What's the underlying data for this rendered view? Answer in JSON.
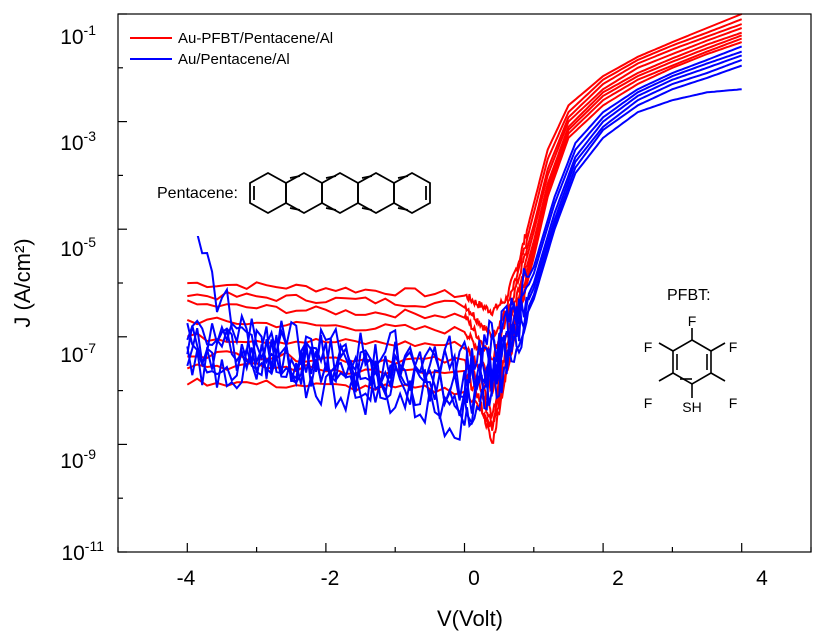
{
  "chart_data": {
    "type": "line",
    "xlabel": "V(Volt)",
    "ylabel": "J (A/cm²)",
    "xlim": [
      -5,
      5
    ],
    "ylim": [
      1e-11,
      0.1
    ],
    "yscale": "log",
    "x_ticks": [
      -4,
      -2,
      0,
      2,
      4
    ],
    "x_tick_labels": [
      "-4",
      "-2",
      "0",
      "2",
      "4"
    ],
    "y_ticks": [
      {
        "base": "10",
        "exp": "-1",
        "value": 0.1
      },
      {
        "base": "10",
        "exp": "-3",
        "value": 0.001
      },
      {
        "base": "10",
        "exp": "-5",
        "value": 1e-05
      },
      {
        "base": "10",
        "exp": "-7",
        "value": 1e-07
      },
      {
        "base": "10",
        "exp": "-9",
        "value": 1e-09
      },
      {
        "base": "10",
        "exp": "-11",
        "value": 1e-11
      }
    ],
    "legend_position": "top-left",
    "series": [
      {
        "name": "Au-PFBT/Pentacene/Al",
        "color": "#ff0000",
        "curves": [
          {
            "x": [
              -4,
              -2,
              0,
              0.2,
              0.4,
              0.6,
              0.8,
              1.0,
              1.2,
              1.5,
              2,
              2.5,
              3,
              3.5,
              4
            ],
            "y": [
              1e-06,
              8e-07,
              6e-07,
              4e-07,
              3e-07,
              5e-07,
              3e-06,
              3e-05,
              0.0003,
              0.002,
              0.007,
              0.016,
              0.03,
              0.055,
              0.1
            ]
          },
          {
            "x": [
              -4,
              -2,
              0,
              0.2,
              0.4,
              0.6,
              0.8,
              1.0,
              1.2,
              1.5,
              2,
              2.5,
              3,
              3.5,
              4
            ],
            "y": [
              6e-07,
              5e-07,
              4e-07,
              2e-07,
              1e-07,
              3e-07,
              2e-06,
              2e-05,
              0.0002,
              0.0015,
              0.006,
              0.014,
              0.026,
              0.045,
              0.08
            ]
          },
          {
            "x": [
              -4,
              -2,
              0,
              0.2,
              0.4,
              0.6,
              0.8,
              1.0,
              1.2,
              1.5,
              2,
              2.5,
              3,
              3.5,
              4
            ],
            "y": [
              4e-07,
              3e-07,
              2.5e-07,
              1e-07,
              4e-08,
              2e-07,
              1.5e-06,
              1.2e-05,
              0.00013,
              0.0012,
              0.005,
              0.012,
              0.022,
              0.038,
              0.065
            ]
          },
          {
            "x": [
              -4,
              -2,
              0,
              0.2,
              0.4,
              0.6,
              0.8,
              1.0,
              1.2,
              1.5,
              2,
              2.5,
              3,
              3.5,
              4
            ],
            "y": [
              2e-07,
              1.6e-07,
              1.3e-07,
              6e-08,
              1e-08,
              1e-07,
              1e-06,
              9e-06,
              0.0001,
              0.001,
              0.004,
              0.01,
              0.018,
              0.032,
              0.055
            ]
          },
          {
            "x": [
              -4,
              -2,
              0,
              0.2,
              0.4,
              0.6,
              0.8,
              1.0,
              1.2,
              1.5,
              2,
              2.5,
              3,
              3.5,
              4
            ],
            "y": [
              1e-07,
              8e-08,
              7e-08,
              3e-08,
              3e-09,
              6e-08,
              7e-07,
              6e-06,
              7e-05,
              0.0008,
              0.0035,
              0.008,
              0.015,
              0.027,
              0.045
            ]
          },
          {
            "x": [
              -4,
              -2,
              0,
              0.2,
              0.4,
              0.6,
              0.8,
              1.0,
              1.2,
              1.5,
              2,
              2.5,
              3,
              3.5,
              4
            ],
            "y": [
              5e-08,
              4e-08,
              3.5e-08,
              1.5e-08,
              2e-09,
              4e-08,
              5e-07,
              5e-06,
              6e-05,
              0.0007,
              0.003,
              0.007,
              0.013,
              0.023,
              0.04
            ]
          },
          {
            "x": [
              -4,
              -2,
              0,
              0.2,
              0.4,
              0.6,
              0.8,
              1.0,
              1.2,
              1.5,
              2,
              2.5,
              3,
              3.5,
              4
            ],
            "y": [
              3e-08,
              2.5e-08,
              2e-08,
              8e-09,
              1e-09,
              2e-08,
              3e-07,
              4e-06,
              5e-05,
              0.0006,
              0.0025,
              0.006,
              0.011,
              0.02,
              0.035
            ]
          },
          {
            "x": [
              -4,
              -2,
              0,
              0.2,
              0.4,
              0.6,
              0.8,
              1.0,
              1.2,
              1.5,
              2,
              2.5,
              3,
              3.5,
              4
            ],
            "y": [
              1.5e-08,
              1.2e-08,
              1e-08,
              5e-09,
              2e-09,
              2e-08,
              3e-07,
              3e-06,
              4e-05,
              0.0005,
              0.002,
              0.005,
              0.01,
              0.018,
              0.03
            ]
          }
        ]
      },
      {
        "name": "Au/Pentacene/Al",
        "color": "#0000ff",
        "curves": [
          {
            "x": [
              -4,
              -3,
              -2,
              -1,
              0,
              0.5,
              1.0,
              1.3,
              1.6,
              2,
              2.5,
              3,
              3.5,
              4
            ],
            "y": [
              1.5e-07,
              8e-08,
              6e-08,
              5e-08,
              4e-08,
              1e-07,
              2e-06,
              4e-05,
              0.0004,
              0.0015,
              0.004,
              0.008,
              0.014,
              0.025
            ]
          },
          {
            "x": [
              -4,
              -3,
              -2,
              -1,
              0,
              0.5,
              1.0,
              1.3,
              1.6,
              2,
              2.5,
              3,
              3.5,
              4
            ],
            "y": [
              1e-07,
              6e-08,
              4e-08,
              3e-08,
              2e-08,
              6e-08,
              1.5e-06,
              3e-05,
              0.0003,
              0.0012,
              0.0035,
              0.007,
              0.012,
              0.02
            ]
          },
          {
            "x": [
              -4,
              -3,
              -2,
              -1,
              0,
              0.5,
              1.0,
              1.3,
              1.6,
              2,
              2.5,
              3,
              3.5,
              4
            ],
            "y": [
              8e-08,
              5e-08,
              3e-08,
              2e-08,
              1e-08,
              4e-08,
              1e-06,
              2e-05,
              0.00022,
              0.001,
              0.003,
              0.006,
              0.01,
              0.017
            ]
          },
          {
            "x": [
              -4,
              -3,
              -2,
              -1,
              0,
              0.5,
              1.0,
              1.3,
              1.6,
              2,
              2.5,
              3,
              3.5,
              4
            ],
            "y": [
              6e-08,
              3e-08,
              2e-08,
              1.5e-08,
              6e-09,
              3e-08,
              8e-07,
              1.5e-05,
              0.00018,
              0.0008,
              0.0025,
              0.005,
              0.008,
              0.014
            ]
          },
          {
            "x": [
              -4,
              -3,
              -2,
              -1,
              0,
              0.5,
              1.0,
              1.3,
              1.6,
              2,
              2.5,
              3,
              3.5,
              4
            ],
            "y": [
              4e-08,
              2e-08,
              1.2e-08,
              8e-09,
              3e-09,
              2e-08,
              6e-07,
              1.2e-05,
              0.00014,
              0.0007,
              0.002,
              0.004,
              0.0065,
              0.011
            ]
          },
          {
            "x": [
              -4,
              -3,
              -2,
              -1,
              0,
              0.5,
              1.0,
              1.3,
              1.6,
              2,
              2.5,
              3,
              3.5,
              4
            ],
            "y": [
              6e-06,
              5e-08,
              3e-08,
              2e-08,
              5e-09,
              2e-08,
              5e-07,
              1e-05,
              0.00011,
              0.0005,
              0.0015,
              0.0025,
              0.0035,
              0.004
            ]
          }
        ]
      }
    ]
  },
  "annotations": {
    "pentacene_label": "Pentacene:",
    "pfbt_label": "PFBT:",
    "atoms": {
      "F": "F",
      "SH": "SH"
    }
  }
}
